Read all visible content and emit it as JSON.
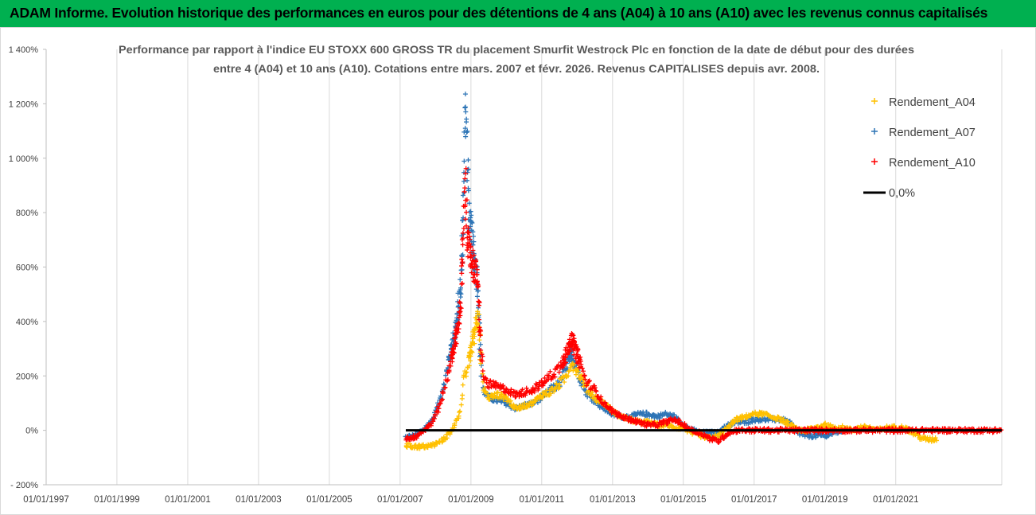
{
  "banner": {
    "text": "ADAM Informe. Evolution historique des performances en euros pour des détentions de 4 ans (A04) à 10 ans (A10) avec les revenus connus capitalisés"
  },
  "colors": {
    "banner_bg": "#00b050",
    "A04": "#ffc000",
    "A07": "#2e75b6",
    "A10": "#ff0000",
    "zero_line": "#000000",
    "grid": "#d9d9d9"
  },
  "chart_data": {
    "type": "scatter",
    "title_line1": "Performance par rapport à l'indice EU STOXX 600 GROSS TR  du placement Smurfit Westrock Plc en fonction de la date de début pour des durées",
    "title_line2": "entre 4 (A04) et 10 ans (A10).  Cotations entre mars. 2007 et févr. 2026. Revenus CAPITALISES depuis avr. 2008.",
    "x_axis": {
      "type": "date",
      "min": "1997-01-01",
      "max": "2023-12-31"
    },
    "x_ticks": [
      "01/01/1997",
      "01/01/1999",
      "01/01/2001",
      "01/01/2003",
      "01/01/2005",
      "01/01/2007",
      "01/01/2009",
      "01/01/2011",
      "01/01/2013",
      "01/01/2015",
      "01/01/2017",
      "01/01/2019",
      "01/01/2021"
    ],
    "y_axis": {
      "unit": "%",
      "min": -200,
      "max": 1400,
      "step": 200
    },
    "y_ticks": [
      "1 400%",
      "1 200%",
      "1 000%",
      "800%",
      "600%",
      "400%",
      "200%",
      "0%",
      "- 200%"
    ],
    "grid": "vertical",
    "legend": {
      "position": "right",
      "entries": [
        {
          "label": "Rendement_A04",
          "marker": "plus",
          "color": "#ffc000"
        },
        {
          "label": "Rendement_A07",
          "marker": "plus",
          "color": "#2e75b6"
        },
        {
          "label": "Rendement_A10",
          "marker": "plus",
          "color": "#ff0000"
        },
        {
          "label": "0,0%",
          "marker": "line",
          "color": "#000000"
        }
      ]
    },
    "zero_line": {
      "label": "0,0%",
      "value": 0,
      "x_start": "2007-03-01",
      "x_end": "2023-12-31"
    },
    "series": [
      {
        "name": "Rendement_A04",
        "color": "#ffc000",
        "points": [
          [
            "2007-03-01",
            -55
          ],
          [
            "2007-06-01",
            -60
          ],
          [
            "2007-09-01",
            -60
          ],
          [
            "2007-12-01",
            -55
          ],
          [
            "2008-02-01",
            -45
          ],
          [
            "2008-04-01",
            -30
          ],
          [
            "2008-06-01",
            -10
          ],
          [
            "2008-08-01",
            30
          ],
          [
            "2008-09-15",
            80
          ],
          [
            "2008-10-15",
            180
          ],
          [
            "2008-11-15",
            210
          ],
          [
            "2008-12-15",
            260
          ],
          [
            "2009-01-15",
            320
          ],
          [
            "2009-02-15",
            380
          ],
          [
            "2009-03-10",
            440
          ],
          [
            "2009-04-01",
            330
          ],
          [
            "2009-05-01",
            160
          ],
          [
            "2009-07-01",
            120
          ],
          [
            "2009-10-01",
            130
          ],
          [
            "2010-01-01",
            120
          ],
          [
            "2010-04-01",
            80
          ],
          [
            "2010-07-01",
            90
          ],
          [
            "2010-10-01",
            100
          ],
          [
            "2011-01-01",
            130
          ],
          [
            "2011-04-01",
            140
          ],
          [
            "2011-07-01",
            170
          ],
          [
            "2011-09-15",
            200
          ],
          [
            "2011-11-01",
            250
          ],
          [
            "2012-01-01",
            220
          ],
          [
            "2012-04-01",
            160
          ],
          [
            "2012-07-01",
            120
          ],
          [
            "2012-10-01",
            100
          ],
          [
            "2013-01-01",
            70
          ],
          [
            "2013-04-01",
            50
          ],
          [
            "2013-07-01",
            40
          ],
          [
            "2013-10-01",
            30
          ],
          [
            "2014-01-01",
            30
          ],
          [
            "2014-04-01",
            20
          ],
          [
            "2014-07-01",
            20
          ],
          [
            "2014-10-01",
            10
          ],
          [
            "2015-01-01",
            10
          ],
          [
            "2015-04-01",
            -10
          ],
          [
            "2015-07-01",
            -20
          ],
          [
            "2015-10-01",
            -30
          ],
          [
            "2016-01-01",
            -20
          ],
          [
            "2016-04-01",
            10
          ],
          [
            "2016-07-01",
            40
          ],
          [
            "2016-10-01",
            50
          ],
          [
            "2017-01-01",
            60
          ],
          [
            "2017-04-01",
            60
          ],
          [
            "2017-07-01",
            50
          ],
          [
            "2017-10-01",
            40
          ],
          [
            "2018-01-01",
            20
          ],
          [
            "2018-04-01",
            0
          ],
          [
            "2018-07-01",
            0
          ],
          [
            "2018-10-01",
            10
          ],
          [
            "2019-01-01",
            20
          ],
          [
            "2019-04-01",
            10
          ],
          [
            "2019-07-01",
            10
          ],
          [
            "2019-10-01",
            0
          ],
          [
            "2020-01-01",
            10
          ],
          [
            "2020-04-01",
            10
          ],
          [
            "2020-07-01",
            0
          ],
          [
            "2020-10-01",
            10
          ],
          [
            "2021-01-01",
            10
          ],
          [
            "2021-04-01",
            10
          ],
          [
            "2021-07-01",
            -10
          ],
          [
            "2021-10-01",
            -30
          ],
          [
            "2022-01-01",
            -35
          ],
          [
            "2022-03-01",
            -30
          ]
        ]
      },
      {
        "name": "Rendement_A07",
        "color": "#2e75b6",
        "points": [
          [
            "2007-03-01",
            -25
          ],
          [
            "2007-06-01",
            -20
          ],
          [
            "2007-09-01",
            0
          ],
          [
            "2007-12-01",
            40
          ],
          [
            "2008-02-01",
            100
          ],
          [
            "2008-04-01",
            180
          ],
          [
            "2008-06-01",
            280
          ],
          [
            "2008-08-01",
            380
          ],
          [
            "2008-09-15",
            520
          ],
          [
            "2008-10-15",
            800
          ],
          [
            "2008-11-01",
            1210
          ],
          [
            "2008-11-15",
            1100
          ],
          [
            "2008-12-15",
            760
          ],
          [
            "2009-01-15",
            700
          ],
          [
            "2009-02-15",
            600
          ],
          [
            "2009-03-10",
            560
          ],
          [
            "2009-04-01",
            330
          ],
          [
            "2009-05-01",
            150
          ],
          [
            "2009-07-01",
            120
          ],
          [
            "2009-10-01",
            110
          ],
          [
            "2010-01-01",
            100
          ],
          [
            "2010-04-01",
            80
          ],
          [
            "2010-07-01",
            90
          ],
          [
            "2010-10-01",
            100
          ],
          [
            "2011-01-01",
            120
          ],
          [
            "2011-04-01",
            150
          ],
          [
            "2011-07-01",
            170
          ],
          [
            "2011-09-15",
            230
          ],
          [
            "2011-11-01",
            280
          ],
          [
            "2012-01-01",
            220
          ],
          [
            "2012-04-01",
            140
          ],
          [
            "2012-07-01",
            110
          ],
          [
            "2012-10-01",
            80
          ],
          [
            "2013-01-01",
            60
          ],
          [
            "2013-04-01",
            50
          ],
          [
            "2013-07-01",
            50
          ],
          [
            "2013-10-01",
            60
          ],
          [
            "2014-01-01",
            60
          ],
          [
            "2014-04-01",
            50
          ],
          [
            "2014-07-01",
            60
          ],
          [
            "2014-10-01",
            50
          ],
          [
            "2015-01-01",
            20
          ],
          [
            "2015-04-01",
            0
          ],
          [
            "2015-07-01",
            -10
          ],
          [
            "2015-10-01",
            -10
          ],
          [
            "2016-01-01",
            -10
          ],
          [
            "2016-04-01",
            20
          ],
          [
            "2016-07-01",
            30
          ],
          [
            "2016-10-01",
            30
          ],
          [
            "2017-01-01",
            40
          ],
          [
            "2017-04-01",
            40
          ],
          [
            "2017-07-01",
            40
          ],
          [
            "2017-10-01",
            40
          ],
          [
            "2018-01-01",
            30
          ],
          [
            "2018-04-01",
            -10
          ],
          [
            "2018-07-01",
            -20
          ],
          [
            "2018-10-01",
            -20
          ],
          [
            "2019-01-01",
            -20
          ],
          [
            "2019-04-01",
            -10
          ],
          [
            "2019-07-01",
            0
          ]
        ]
      },
      {
        "name": "Rendement_A10",
        "color": "#ff0000",
        "points": [
          [
            "2007-03-01",
            -30
          ],
          [
            "2007-06-01",
            -25
          ],
          [
            "2007-09-01",
            0
          ],
          [
            "2007-12-01",
            30
          ],
          [
            "2008-02-01",
            80
          ],
          [
            "2008-04-01",
            150
          ],
          [
            "2008-06-01",
            250
          ],
          [
            "2008-08-01",
            340
          ],
          [
            "2008-09-15",
            450
          ],
          [
            "2008-10-15",
            700
          ],
          [
            "2008-11-01",
            940
          ],
          [
            "2008-11-15",
            780
          ],
          [
            "2008-12-15",
            650
          ],
          [
            "2009-01-15",
            620
          ],
          [
            "2009-02-15",
            580
          ],
          [
            "2009-03-10",
            560
          ],
          [
            "2009-04-01",
            400
          ],
          [
            "2009-05-01",
            200
          ],
          [
            "2009-07-01",
            170
          ],
          [
            "2009-10-01",
            160
          ],
          [
            "2010-01-01",
            150
          ],
          [
            "2010-04-01",
            130
          ],
          [
            "2010-07-01",
            140
          ],
          [
            "2010-10-01",
            150
          ],
          [
            "2011-01-01",
            170
          ],
          [
            "2011-04-01",
            200
          ],
          [
            "2011-07-01",
            230
          ],
          [
            "2011-09-15",
            280
          ],
          [
            "2011-11-01",
            340
          ],
          [
            "2012-01-01",
            280
          ],
          [
            "2012-04-01",
            180
          ],
          [
            "2012-07-01",
            150
          ],
          [
            "2012-10-01",
            100
          ],
          [
            "2013-01-01",
            70
          ],
          [
            "2013-04-01",
            50
          ],
          [
            "2013-07-01",
            40
          ],
          [
            "2013-10-01",
            30
          ],
          [
            "2014-01-01",
            20
          ],
          [
            "2014-04-01",
            20
          ],
          [
            "2014-07-01",
            30
          ],
          [
            "2014-10-01",
            40
          ],
          [
            "2015-01-01",
            20
          ],
          [
            "2015-04-01",
            0
          ],
          [
            "2015-07-01",
            -10
          ],
          [
            "2015-10-01",
            -30
          ],
          [
            "2016-01-01",
            -40
          ],
          [
            "2016-04-01",
            -10
          ],
          [
            "2016-07-01",
            0
          ],
          [
            "2016-10-01",
            0
          ],
          [
            "2017-01-01",
            0
          ],
          [
            "2017-04-01",
            0
          ],
          [
            "2017-07-01",
            0
          ],
          [
            "2017-10-01",
            0
          ],
          [
            "2018-01-01",
            0
          ],
          [
            "2018-07-01",
            0
          ],
          [
            "2019-01-01",
            0
          ],
          [
            "2019-07-01",
            0
          ],
          [
            "2020-01-01",
            0
          ],
          [
            "2020-07-01",
            0
          ],
          [
            "2021-01-01",
            0
          ],
          [
            "2021-07-01",
            0
          ],
          [
            "2022-01-01",
            0
          ],
          [
            "2022-07-01",
            0
          ],
          [
            "2023-01-01",
            0
          ],
          [
            "2023-07-01",
            0
          ],
          [
            "2023-12-31",
            0
          ]
        ]
      }
    ]
  }
}
